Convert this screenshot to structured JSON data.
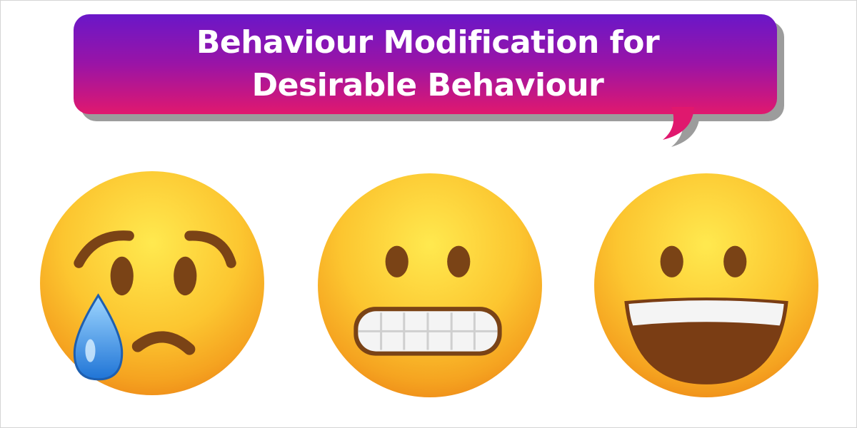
{
  "slide": {
    "title_line1": "Behaviour Modification for",
    "title_line2": "Desirable Behaviour"
  },
  "colors": {
    "banner_gradient_top": "#6a17c8",
    "banner_gradient_bottom": "#e0186e",
    "banner_shadow": "#9a9a9a",
    "emoji_face_top": "#ffe44a",
    "emoji_face_bottom": "#f29a1d",
    "emoji_feature": "#7a4316",
    "tear": "#2f8de0"
  },
  "emojis": [
    {
      "icon": "crying-face-icon"
    },
    {
      "icon": "grimacing-face-icon"
    },
    {
      "icon": "smiling-face-open-mouth-icon"
    }
  ]
}
